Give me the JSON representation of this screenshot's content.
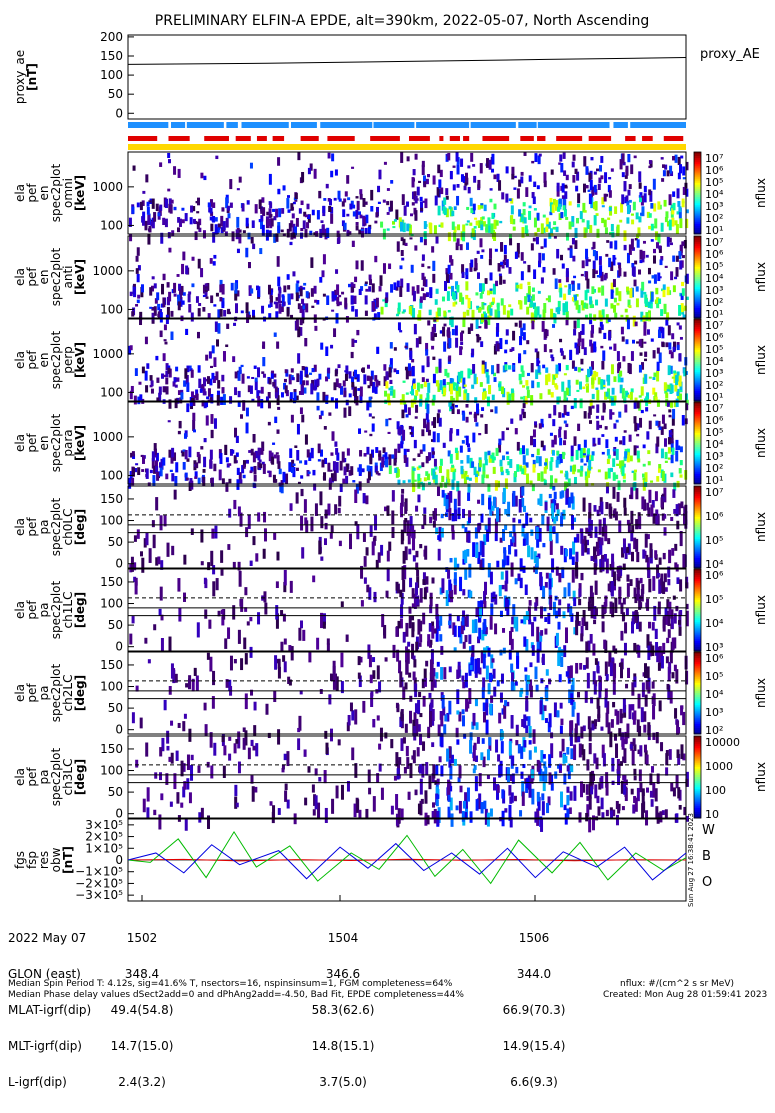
{
  "title": "PRELIMINARY ELFIN-A EPDE, alt=390km, 2022-05-07, North Ascending",
  "panels": {
    "proxy_ae": {
      "ylabel": [
        "proxy_ae",
        "[nT]"
      ],
      "legend": "proxy_AE",
      "yticks": [
        "200",
        "150",
        "100",
        "50",
        "0"
      ],
      "ylim": [
        -15,
        205
      ]
    },
    "spectra": [
      {
        "ylabel": [
          "ela",
          "pef",
          "en",
          "spec2plot",
          "omni",
          "[keV]"
        ],
        "yticks": [
          "1000",
          "100"
        ]
      },
      {
        "ylabel": [
          "ela",
          "pef",
          "en",
          "spec2plot",
          "anti",
          "[keV]"
        ],
        "yticks": [
          "1000",
          "100"
        ]
      },
      {
        "ylabel": [
          "ela",
          "pef",
          "en",
          "spec2plot",
          "perp",
          "[keV]"
        ],
        "yticks": [
          "1000",
          "100"
        ]
      },
      {
        "ylabel": [
          "ela",
          "pef",
          "en",
          "spec2plot",
          "para",
          "[keV]"
        ],
        "yticks": [
          "1000",
          "100"
        ]
      }
    ],
    "pitch": [
      {
        "ylabel": [
          "ela",
          "pef",
          "pa",
          "spec2plot",
          "ch0LC",
          "[deg]"
        ],
        "yticks": [
          "150",
          "100",
          "50",
          "0"
        ]
      },
      {
        "ylabel": [
          "ela",
          "pef",
          "pa",
          "spec2plot",
          "ch1LC",
          "[deg]"
        ],
        "yticks": [
          "150",
          "100",
          "50",
          "0"
        ]
      },
      {
        "ylabel": [
          "ela",
          "pef",
          "pa",
          "spec2plot",
          "ch2LC",
          "[deg]"
        ],
        "yticks": [
          "150",
          "100",
          "50",
          "0"
        ]
      },
      {
        "ylabel": [
          "ela",
          "pef",
          "pa",
          "spec2plot",
          "ch3LC",
          "[deg]"
        ],
        "yticks": [
          "150",
          "100",
          "50",
          "0"
        ]
      }
    ],
    "fgs": {
      "ylabel": [
        "fgs",
        "fsp",
        "res",
        "obw",
        "[nT]"
      ],
      "yticks": [
        "3×10⁵",
        "2×10⁵",
        "1×10⁵",
        "0",
        "−1×10⁵",
        "−2×10⁵",
        "−3×10⁵"
      ],
      "legend": [
        {
          "label": "W",
          "color": "#e00000"
        },
        {
          "label": "B",
          "color": "#00bb00"
        },
        {
          "label": "O",
          "color": "#0000e0"
        }
      ]
    }
  },
  "colorbars": [
    {
      "label": "nflux",
      "ticks": [
        "10⁷",
        "10⁶",
        "10⁵",
        "10⁴",
        "10³",
        "10²",
        "10¹"
      ]
    },
    {
      "label": "nflux",
      "ticks": [
        "10⁷",
        "10⁶",
        "10⁵",
        "10⁴",
        "10³",
        "10²",
        "10¹"
      ]
    },
    {
      "label": "nflux",
      "ticks": [
        "10⁷",
        "10⁶",
        "10⁵",
        "10⁴",
        "10³",
        "10²",
        "10¹"
      ]
    },
    {
      "label": "nflux",
      "ticks": [
        "10⁷",
        "10⁶",
        "10⁵",
        "10⁴",
        "10³",
        "10²",
        "10¹"
      ]
    },
    {
      "label": "nflux",
      "ticks": [
        "10⁷",
        "10⁶",
        "10⁵",
        "10⁴"
      ]
    },
    {
      "label": "nflux",
      "ticks": [
        "10⁶",
        "10⁵",
        "10⁴",
        "10³"
      ]
    },
    {
      "label": "nflux",
      "ticks": [
        "10⁶",
        "10⁵",
        "10⁴",
        "10³",
        "10²"
      ]
    },
    {
      "label": "nflux",
      "ticks": [
        "10000",
        "1000",
        "100",
        "10"
      ]
    }
  ],
  "footer": {
    "rows": [
      {
        "label": "2022 May 07",
        "values": [
          "1502",
          "1504",
          "1506"
        ]
      },
      {
        "label": "GLON (east)",
        "values": [
          "348.4",
          "346.6",
          "344.0"
        ]
      },
      {
        "label": "MLAT-igrf(dip)",
        "values": [
          "49.4(54.8)",
          "58.3(62.6)",
          "66.9(70.3)"
        ]
      },
      {
        "label": "MLT-igrf(dip)",
        "values": [
          "14.7(15.0)",
          "14.8(15.1)",
          "14.9(15.4)"
        ]
      },
      {
        "label": "L-igrf(dip)",
        "values": [
          "2.4(3.2)",
          "3.7(5.0)",
          "6.6(9.3)"
        ]
      }
    ],
    "note1": "Median Spin Period T: 4.12s, sig=41.6% T, nsectors=16, nspinsinsum=1, FGM completeness=64%",
    "note2": "Median Phase delay values dSect2add=0 and dPhAng2add=-4.50, Bad Fit, EPDE completeness=44%",
    "units": "nflux: #/(cm^2 s sr MeV)",
    "created": "Created: Mon Aug 28 01:59:41 2023",
    "sidestamp": "Sun Aug 27 16:38:41 2023"
  },
  "chart_data": {
    "type": "heatmap",
    "x_time_ticks": [
      "1502",
      "1504",
      "1506"
    ],
    "proxy_ae": {
      "type": "line",
      "x": [
        0,
        0.25,
        0.5,
        0.75,
        1.0
      ],
      "y": [
        128,
        131,
        136,
        141,
        146
      ]
    },
    "energy_axis": {
      "scale": "log",
      "unit": "keV",
      "ylim": [
        60,
        8000
      ]
    },
    "pitch_axis": {
      "unit": "deg",
      "ylim": [
        -10,
        180
      ],
      "dashed_level": 113,
      "solid_levels": [
        72,
        90
      ]
    },
    "fgs_residuals": {
      "ylim": [
        -350000,
        350000
      ],
      "series": [
        {
          "name": "W",
          "color": "#e00000",
          "x": [
            0,
            0.1,
            0.2,
            0.3,
            0.4,
            0.5,
            0.6,
            0.7,
            0.8,
            0.9,
            1.0
          ],
          "y": [
            0,
            5000,
            -8000,
            3000,
            -4000,
            6000,
            -2000,
            4000,
            -6000,
            2000,
            0
          ]
        },
        {
          "name": "B",
          "color": "#00bb00",
          "x": [
            0,
            0.04,
            0.09,
            0.14,
            0.19,
            0.23,
            0.29,
            0.34,
            0.4,
            0.45,
            0.5,
            0.55,
            0.6,
            0.65,
            0.7,
            0.76,
            0.81,
            0.86,
            0.91,
            0.96,
            1.0
          ],
          "y": [
            0,
            -20000,
            180000,
            -150000,
            240000,
            -60000,
            120000,
            -180000,
            60000,
            -80000,
            210000,
            -140000,
            90000,
            -200000,
            170000,
            -110000,
            150000,
            -170000,
            60000,
            -90000,
            20000
          ]
        },
        {
          "name": "O",
          "color": "#0000e0",
          "x": [
            0,
            0.05,
            0.1,
            0.15,
            0.2,
            0.27,
            0.32,
            0.38,
            0.43,
            0.48,
            0.53,
            0.58,
            0.63,
            0.68,
            0.73,
            0.78,
            0.84,
            0.89,
            0.94,
            1.0
          ],
          "y": [
            0,
            60000,
            -110000,
            130000,
            -40000,
            80000,
            -160000,
            110000,
            -70000,
            140000,
            -90000,
            60000,
            -120000,
            100000,
            -150000,
            70000,
            -60000,
            110000,
            -170000,
            60000
          ]
        }
      ]
    }
  }
}
